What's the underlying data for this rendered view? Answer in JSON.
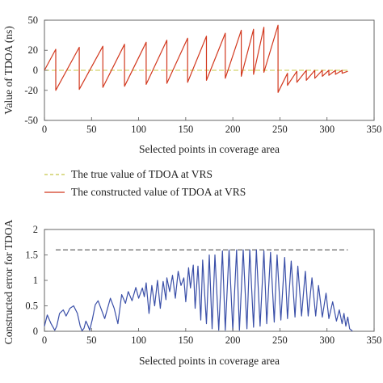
{
  "chart_data": [
    {
      "type": "line",
      "title": "",
      "xlabel": "Selected points in coverage area",
      "ylabel": "Value of TDOA (ns)",
      "xlim": [
        0,
        350
      ],
      "ylim": [
        -50,
        50
      ],
      "xticks": [
        0,
        50,
        100,
        150,
        200,
        250,
        300,
        350
      ],
      "yticks": [
        50,
        20,
        0,
        -20,
        -50
      ],
      "grid": false,
      "series": [
        {
          "name": "The true value of TDOA at VRS",
          "color": "#c8c84a",
          "style": "dashed",
          "x": [
            0,
            322
          ],
          "y": [
            0,
            0
          ]
        },
        {
          "name": "The constructed value of TDOA at VRS",
          "color": "#d2381e",
          "style": "solid",
          "x": [
            0,
            12,
            12,
            37,
            37,
            62,
            62,
            85,
            85,
            108,
            108,
            130,
            130,
            152,
            152,
            172,
            172,
            192,
            192,
            209,
            209,
            222,
            222,
            233,
            233,
            248,
            248,
            258,
            258,
            268,
            268,
            278,
            278,
            287,
            287,
            295,
            295,
            302,
            302,
            309,
            309,
            316,
            316,
            322
          ],
          "y": [
            0,
            21,
            -20,
            23,
            -19,
            24,
            -17,
            26,
            -16,
            28,
            -14,
            30,
            -13,
            32,
            -12,
            34,
            -10,
            37,
            -8,
            40,
            -6,
            41,
            -4,
            43,
            -2,
            45,
            -22,
            -3,
            -15,
            -1,
            -12,
            0,
            -10,
            0,
            -8,
            0,
            -6,
            0,
            -5,
            0,
            -4,
            0,
            -3,
            -1
          ]
        }
      ]
    },
    {
      "type": "line",
      "title": "",
      "xlabel": "Selected points in coverage area",
      "ylabel": "Constructed error for TDOA",
      "xlim": [
        0,
        350
      ],
      "ylim": [
        0,
        2
      ],
      "xticks": [
        0,
        50,
        100,
        150,
        200,
        250,
        300,
        350
      ],
      "yticks": [
        2,
        1.5,
        1,
        0.5,
        0
      ],
      "grid": false,
      "series": [
        {
          "color": "#555555",
          "style": "dashed",
          "x": [
            12,
            322
          ],
          "y": [
            1.6,
            1.6
          ]
        },
        {
          "color": "#3a4fa8",
          "style": "solid",
          "x": [
            0,
            3,
            7,
            11,
            13,
            16,
            20,
            23,
            27,
            31,
            35,
            38,
            40,
            42,
            44,
            46,
            48,
            51,
            54,
            57,
            60,
            64,
            67,
            70,
            74,
            78,
            82,
            86,
            89,
            93,
            97,
            100,
            104,
            106,
            108,
            111,
            114,
            117,
            120,
            123,
            126,
            129,
            130,
            133,
            136,
            139,
            142,
            145,
            148,
            150,
            153,
            155,
            158,
            160,
            163,
            166,
            168,
            172,
            175,
            178,
            181,
            185,
            189,
            192,
            196,
            200,
            204,
            207,
            211,
            215,
            218,
            222,
            225,
            229,
            233,
            236,
            240,
            244,
            247,
            251,
            255,
            258,
            262,
            266,
            269,
            273,
            277,
            280,
            284,
            288,
            291,
            295,
            299,
            302,
            306,
            310,
            313,
            316,
            318,
            320,
            322,
            324,
            326,
            327
          ],
          "y": [
            0.1,
            0.32,
            0.15,
            0.02,
            0.1,
            0.35,
            0.42,
            0.3,
            0.45,
            0.5,
            0.35,
            0.1,
            0.01,
            0.06,
            0.2,
            0.12,
            0.02,
            0.25,
            0.52,
            0.6,
            0.45,
            0.25,
            0.45,
            0.65,
            0.45,
            0.15,
            0.72,
            0.55,
            0.78,
            0.6,
            0.86,
            0.65,
            0.85,
            0.68,
            0.95,
            0.35,
            0.9,
            0.5,
            1.0,
            0.45,
            0.98,
            0.62,
            1.05,
            0.78,
            1.1,
            0.65,
            1.18,
            0.9,
            1.05,
            0.58,
            1.25,
            0.85,
            1.3,
            0.45,
            1.28,
            0.22,
            1.4,
            0.15,
            1.5,
            0.05,
            1.5,
            0.02,
            1.58,
            0.02,
            1.6,
            0.02,
            1.6,
            0.02,
            1.6,
            0.05,
            1.6,
            0.08,
            1.6,
            0.1,
            1.58,
            0.15,
            1.55,
            0.18,
            1.5,
            0.22,
            1.45,
            0.25,
            1.38,
            0.28,
            1.28,
            0.3,
            1.18,
            0.3,
            1.05,
            0.3,
            0.9,
            0.28,
            0.75,
            0.25,
            0.58,
            0.2,
            0.42,
            0.15,
            0.35,
            0.1,
            0.28,
            0.05,
            0.02,
            0.0
          ]
        }
      ]
    }
  ],
  "legend": {
    "items": [
      {
        "label": "The true value of TDOA at VRS",
        "color": "#c8c84a",
        "style": "dashed"
      },
      {
        "label": "The constructed value of TDOA at VRS",
        "color": "#d2381e",
        "style": "solid"
      }
    ]
  }
}
